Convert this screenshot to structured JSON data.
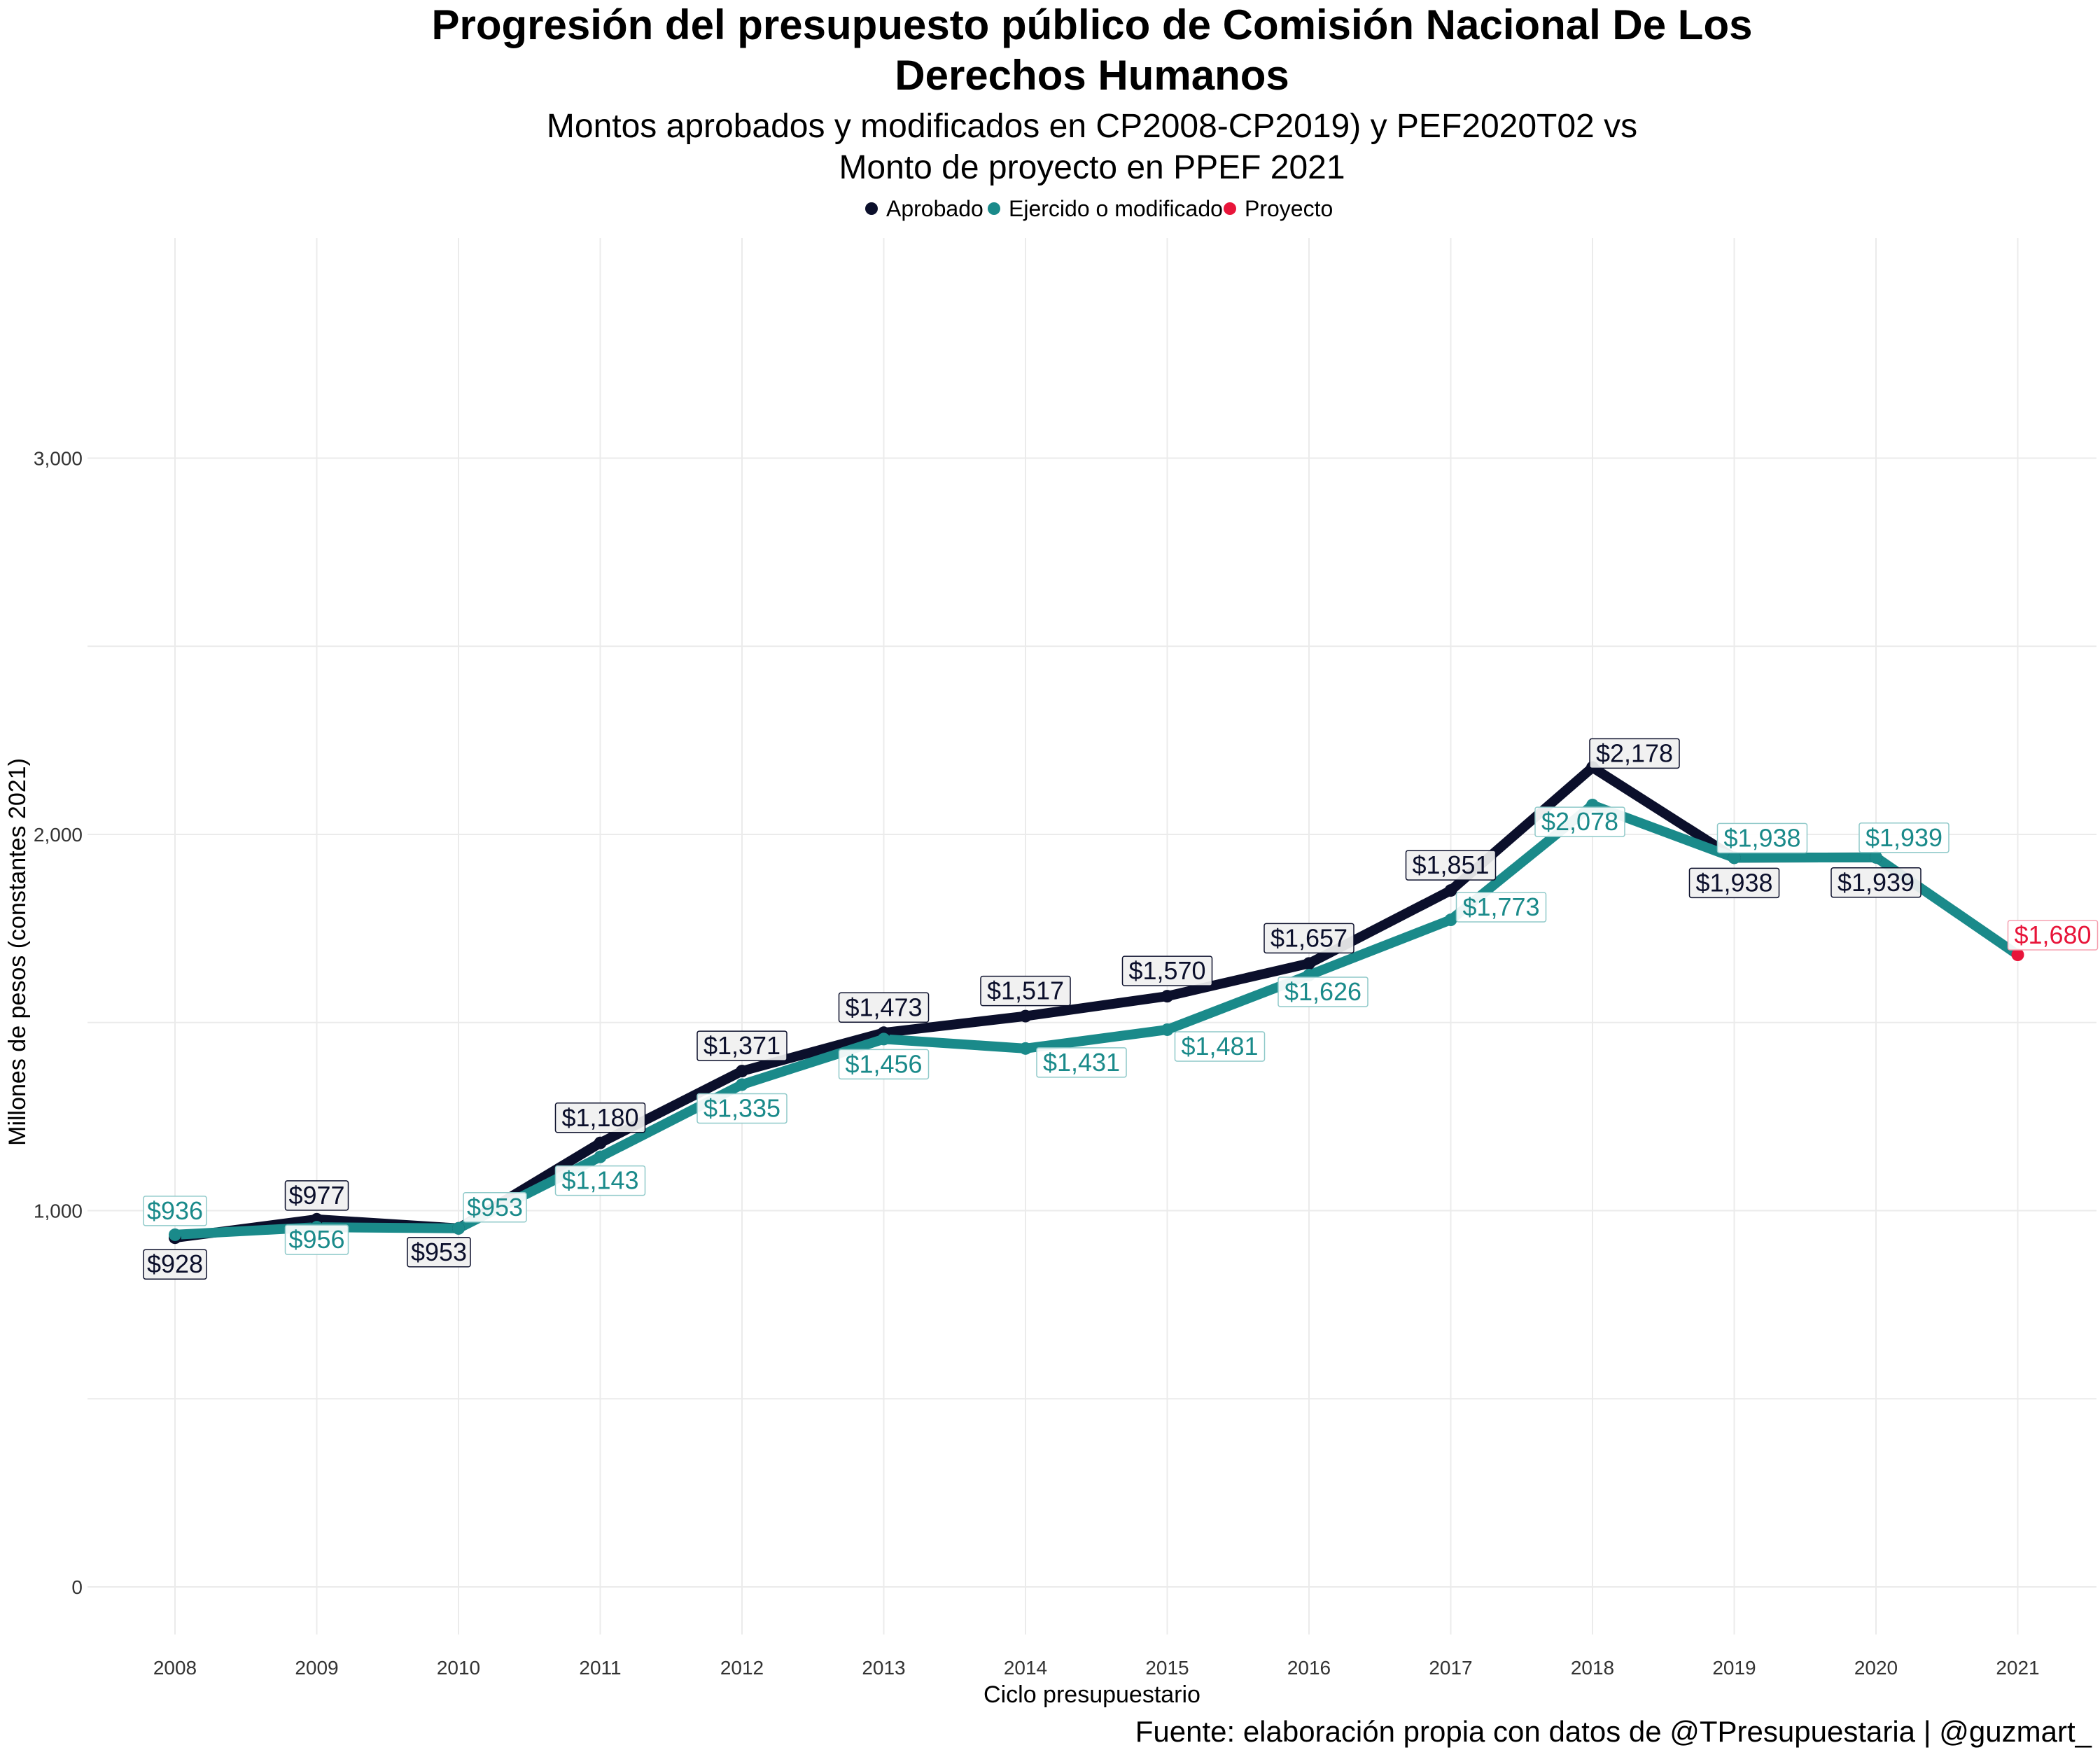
{
  "chart_data": {
    "type": "line",
    "title_line1": "Progresión del presupuesto público de Comisión Nacional De Los",
    "title_line2": "Derechos Humanos",
    "subtitle_line1": "Montos aprobados y modificados en CP2008-CP2019) y PEF2020T02 vs",
    "subtitle_line2": "Monto de proyecto en PPEF 2021",
    "xlabel": "Ciclo presupuestario",
    "ylabel": "Millones de pesos (constantes 2021)",
    "caption": "Fuente: elaboración propia con datos de @TPresupuestaria | @guzmart_",
    "categories": [
      "2008",
      "2009",
      "2010",
      "2011",
      "2012",
      "2013",
      "2014",
      "2015",
      "2016",
      "2017",
      "2018",
      "2019",
      "2020",
      "2021"
    ],
    "ylim": [
      -150,
      3500
    ],
    "yticks": [
      0,
      1000,
      2000,
      3000
    ],
    "ytick_labels": [
      "0",
      "1,000",
      "2,000",
      "3,000"
    ],
    "grid": true,
    "legend_position": "top",
    "series": [
      {
        "name": "Aprobado",
        "color": "#0b0f2b",
        "values": [
          928,
          977,
          953,
          1180,
          1371,
          1473,
          1517,
          1570,
          1657,
          1851,
          2178,
          1938,
          1939,
          null
        ],
        "labels": [
          "$928",
          "$977",
          "$953",
          "$1,180",
          "$1,371",
          "$1,473",
          "$1,517",
          "$1,570",
          "$1,657",
          "$1,851",
          "$2,178",
          "$1,938",
          "$1,939",
          ""
        ]
      },
      {
        "name": "Ejercido o modificado",
        "color": "#1a8a8a",
        "values": [
          936,
          956,
          953,
          1143,
          1335,
          1456,
          1431,
          1481,
          1626,
          1773,
          2078,
          1938,
          1939,
          1680
        ],
        "labels": [
          "$936",
          "$956",
          "$953",
          "$1,143",
          "$1,335",
          "$1,456",
          "$1,431",
          "$1,481",
          "$1,626",
          "$1,773",
          "$2,078",
          "$1,938",
          "$1,939",
          ""
        ]
      },
      {
        "name": "Proyecto",
        "color": "#e8153a",
        "values": [
          null,
          null,
          null,
          null,
          null,
          null,
          null,
          null,
          null,
          null,
          null,
          null,
          null,
          1680
        ],
        "labels": [
          "",
          "",
          "",
          "",
          "",
          "",
          "",
          "",
          "",
          "",
          "",
          "",
          "",
          "$1,680"
        ]
      }
    ]
  }
}
